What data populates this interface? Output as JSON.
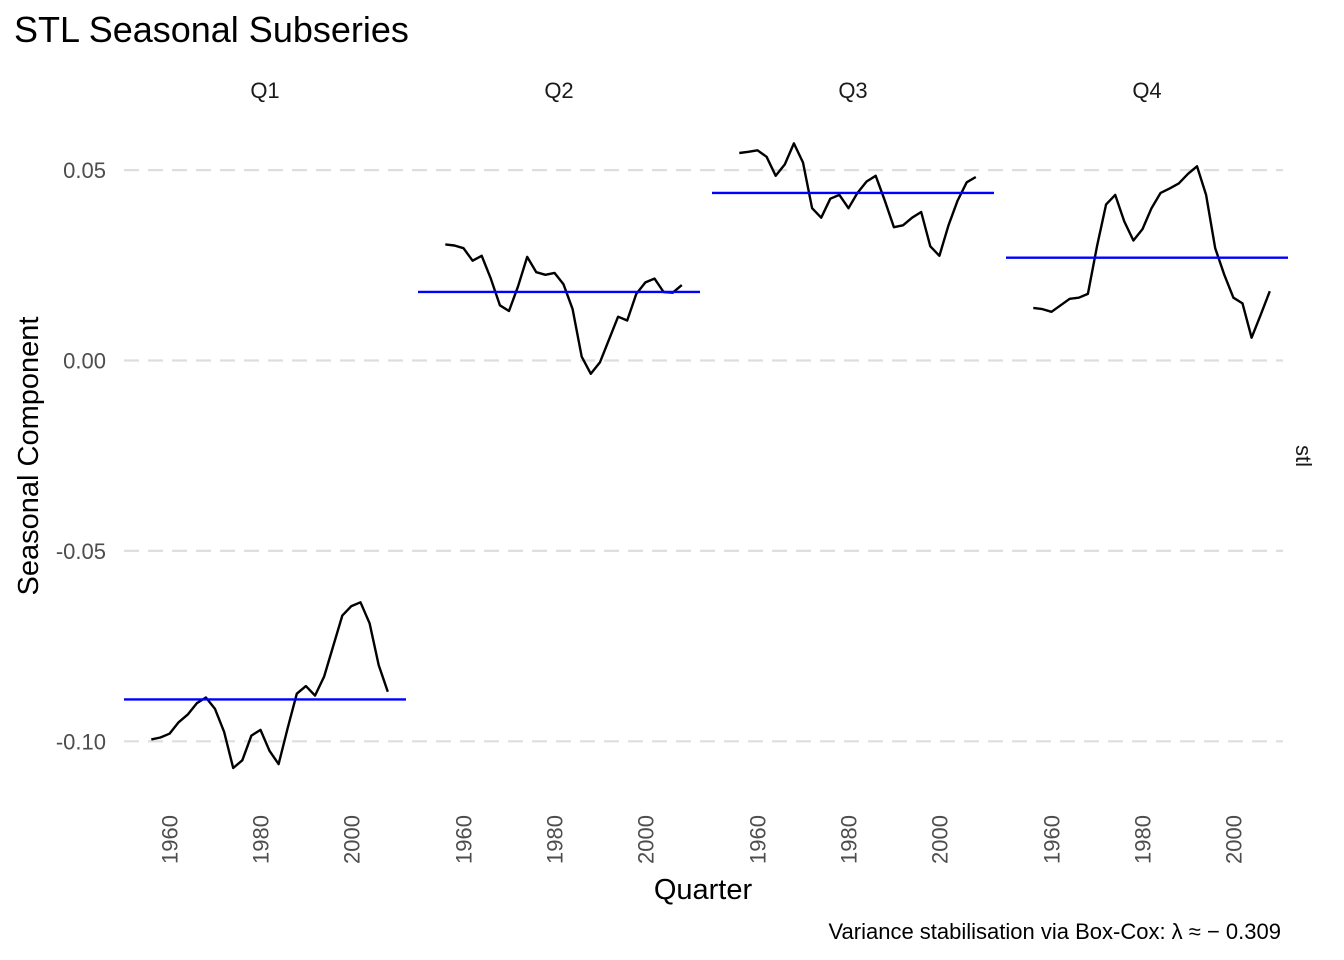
{
  "title": "STL Seasonal Subseries",
  "caption": "Variance stabilisation via Box-Cox: λ ≈ − 0.309",
  "chart_data": {
    "type": "line",
    "title": "STL Seasonal Subseries",
    "xlabel": "Quarter",
    "ylabel": "Seasonal Component",
    "facet_label_right": "stl",
    "ylim": [
      -0.115,
      0.062
    ],
    "xlim": [
      1950,
      2012
    ],
    "y_ticks": [
      0.05,
      0.0,
      -0.05,
      -0.1
    ],
    "y_tick_labels": [
      "0.05",
      "0.00",
      "-0.05",
      "-0.10"
    ],
    "x_ticks": [
      1960,
      1980,
      2000
    ],
    "x_tick_labels": [
      "1960",
      "1980",
      "2000"
    ],
    "grid": "horizontal-major-dashed",
    "colors": {
      "series": "#000000",
      "mean": "#0000ff",
      "grid": "#dedede"
    },
    "x": [
      1956,
      1958,
      1960,
      1962,
      1964,
      1966,
      1968,
      1970,
      1972,
      1974,
      1976,
      1978,
      1980,
      1982,
      1984,
      1986,
      1988,
      1990,
      1992,
      1994,
      1996,
      1998,
      2000,
      2002,
      2004,
      2006,
      2008
    ],
    "panels": [
      {
        "name": "Q1",
        "mean": -0.089,
        "values": [
          -0.0995,
          -0.099,
          -0.098,
          -0.095,
          -0.093,
          -0.09,
          -0.0885,
          -0.0915,
          -0.0975,
          -0.107,
          -0.105,
          -0.0985,
          -0.097,
          -0.1025,
          -0.106,
          -0.0965,
          -0.0875,
          -0.0855,
          -0.088,
          -0.083,
          -0.075,
          -0.067,
          -0.0645,
          -0.0635,
          -0.069,
          -0.08,
          -0.087
        ]
      },
      {
        "name": "Q2",
        "mean": 0.018,
        "values": [
          0.0305,
          0.0302,
          0.0295,
          0.0262,
          0.0275,
          0.0215,
          0.0145,
          0.013,
          0.0195,
          0.0272,
          0.0232,
          0.0225,
          0.023,
          0.02,
          0.0135,
          0.001,
          -0.0035,
          -0.0005,
          0.0055,
          0.0115,
          0.0105,
          0.0175,
          0.0205,
          0.0215,
          0.018,
          0.0178,
          0.0198
        ]
      },
      {
        "name": "Q3",
        "mean": 0.044,
        "values": [
          0.0545,
          0.0548,
          0.0552,
          0.0535,
          0.0485,
          0.0515,
          0.057,
          0.052,
          0.04,
          0.0375,
          0.0425,
          0.0435,
          0.04,
          0.044,
          0.047,
          0.0485,
          0.042,
          0.035,
          0.0355,
          0.0375,
          0.039,
          0.03,
          0.0275,
          0.0355,
          0.042,
          0.0468,
          0.0482
        ]
      },
      {
        "name": "Q4",
        "mean": 0.027,
        "values": [
          0.0138,
          0.0135,
          0.0128,
          0.0145,
          0.0162,
          0.0165,
          0.0175,
          0.03,
          0.041,
          0.0435,
          0.0365,
          0.0315,
          0.0345,
          0.04,
          0.044,
          0.0452,
          0.0465,
          0.049,
          0.051,
          0.0435,
          0.0295,
          0.0225,
          0.0165,
          0.015,
          0.006,
          0.012,
          0.0182
        ]
      }
    ]
  }
}
